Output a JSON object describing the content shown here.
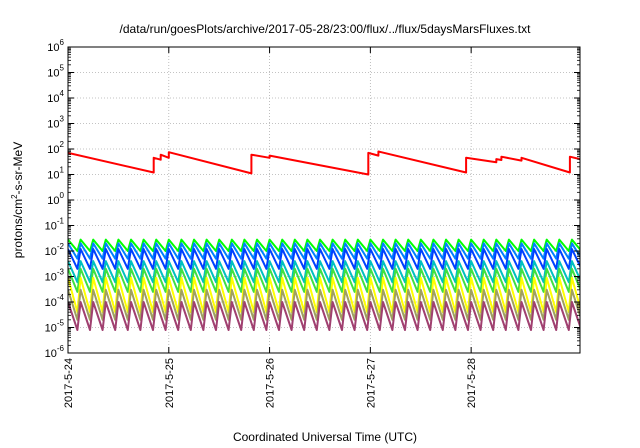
{
  "chart_data": {
    "type": "line",
    "title": "/data/run/goesPlots/archive/2017-05-28/23:00/flux/../flux/5daysMarsFluxes.txt",
    "xlabel": "Coordinated Universal Time (UTC)",
    "ylabel": {
      "prefix": "protons/cm",
      "sup": "2",
      "suffix": "-s-sr-MeV"
    },
    "y_scale": "log",
    "ylim": [
      1e-06,
      1000000.0
    ],
    "y_ticks": [
      {
        "base": "10",
        "exp": "-6",
        "value": 1e-06
      },
      {
        "base": "10",
        "exp": "-5",
        "value": 1e-05
      },
      {
        "base": "10",
        "exp": "-4",
        "value": 0.0001
      },
      {
        "base": "10",
        "exp": "-3",
        "value": 0.001
      },
      {
        "base": "10",
        "exp": "-2",
        "value": 0.01
      },
      {
        "base": "10",
        "exp": "-1",
        "value": 0.1
      },
      {
        "base": "10",
        "exp": "0",
        "value": 1
      },
      {
        "base": "10",
        "exp": "1",
        "value": 10
      },
      {
        "base": "10",
        "exp": "2",
        "value": 100
      },
      {
        "base": "10",
        "exp": "3",
        "value": 1000
      },
      {
        "base": "10",
        "exp": "4",
        "value": 10000
      },
      {
        "base": "10",
        "exp": "5",
        "value": 100000
      },
      {
        "base": "10",
        "exp": "6",
        "value": 1000000
      }
    ],
    "xlim_days": [
      0,
      5.08
    ],
    "x_ticks": [
      "2017-5-24",
      "2017-5-25",
      "2017-5-26",
      "2017-5-27",
      "2017-5-28"
    ],
    "grid": true,
    "legend": "none",
    "series": [
      {
        "color": "#ff0000",
        "segments": [
          {
            "start": 0.0,
            "end": 0.85,
            "y0": 70,
            "y1": 12
          },
          {
            "start": 0.85,
            "end": 0.92,
            "y0": 45,
            "y1": 38
          },
          {
            "start": 0.92,
            "end": 1.0,
            "y0": 60,
            "y1": 45
          },
          {
            "start": 1.0,
            "end": 1.82,
            "y0": 75,
            "y1": 11
          },
          {
            "start": 1.82,
            "end": 2.0,
            "y0": 60,
            "y1": 45
          },
          {
            "start": 2.0,
            "end": 2.98,
            "y0": 55,
            "y1": 10
          },
          {
            "start": 2.98,
            "end": 3.08,
            "y0": 70,
            "y1": 55
          },
          {
            "start": 3.08,
            "end": 3.95,
            "y0": 80,
            "y1": 12
          },
          {
            "start": 3.95,
            "end": 4.25,
            "y0": 45,
            "y1": 30
          },
          {
            "start": 4.25,
            "end": 4.3,
            "y0": 40,
            "y1": 37
          },
          {
            "start": 4.3,
            "end": 4.5,
            "y0": 50,
            "y1": 35
          },
          {
            "start": 4.5,
            "end": 4.98,
            "y0": 45,
            "y1": 12
          },
          {
            "start": 4.98,
            "end": 5.08,
            "y0": 50,
            "y1": 40
          }
        ]
      },
      {
        "color": "#00ff00",
        "period": 0.125,
        "peak": 0.028,
        "trough": 0.01
      },
      {
        "color": "#0080ff",
        "period": 0.125,
        "peak": 0.02,
        "trough": 0.005
      },
      {
        "color": "#0040ff",
        "period": 0.125,
        "peak": 0.012,
        "trough": 0.002
      },
      {
        "color": "#00c0c0",
        "period": 0.125,
        "peak": 0.004,
        "trough": 0.0006
      },
      {
        "color": "#40e040",
        "period": 0.125,
        "peak": 0.002,
        "trough": 0.00025
      },
      {
        "color": "#ffff00",
        "period": 0.125,
        "peak": 0.0009,
        "trough": 4e-05
      },
      {
        "color": "#a0a060",
        "period": 0.125,
        "peak": 0.0003,
        "trough": 2e-05
      },
      {
        "color": "#a04070",
        "period": 0.125,
        "peak": 0.0001,
        "trough": 8e-06
      }
    ]
  }
}
